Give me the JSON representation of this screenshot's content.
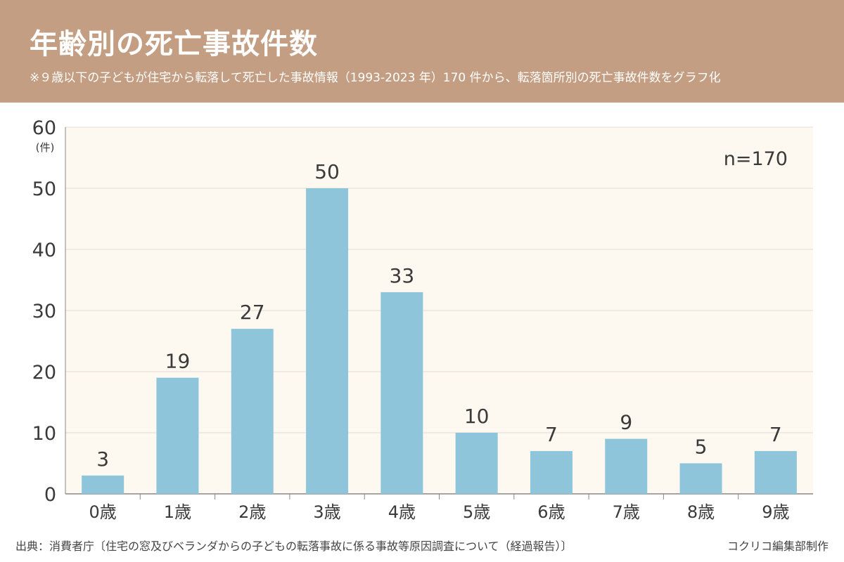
{
  "header": {
    "title": "年齢別の死亡事故件数",
    "subtitle": "※９歳以下の子どもが住宅から転落して死亡した事故情報（1993-2023 年）170 件から、転落箇所別の死亡事故件数をグラフ化"
  },
  "chart_data": {
    "type": "bar",
    "title": "年齢別の死亡事故件数",
    "categories": [
      "0歳",
      "1歳",
      "2歳",
      "3歳",
      "4歳",
      "5歳",
      "6歳",
      "7歳",
      "8歳",
      "9歳"
    ],
    "values": [
      3,
      19,
      27,
      50,
      33,
      10,
      7,
      9,
      5,
      7
    ],
    "ylabel": "(件)",
    "xlabel": "",
    "ylim": [
      0,
      60
    ],
    "yticks": [
      0,
      10,
      20,
      30,
      40,
      50,
      60
    ],
    "grid": true,
    "annotation": "n=170",
    "bar_color": "#8ec5da"
  },
  "footer": {
    "source": "出典：消費者庁〔住宅の窓及びベランダからの子どもの転落事故に係る事故等原因調査について（経過報告）〕",
    "credit": "コクリコ編集部制作"
  },
  "colors": {
    "header_bg": "#c49e82",
    "plot_bg": "#fdf8f0",
    "bar": "#8ec5da"
  }
}
